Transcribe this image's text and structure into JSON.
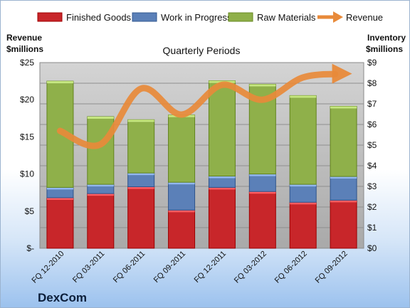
{
  "chart_data": {
    "type": "bar",
    "stacked": true,
    "subtitle": "Quarterly Periods",
    "brand": "DexCom",
    "categories": [
      "FQ 12-2010",
      "FQ 03-2011",
      "FQ 06-2011",
      "FQ 09-2011",
      "FQ 12-2011",
      "FQ 03-2012",
      "FQ 06-2012",
      "FQ 09-2012"
    ],
    "series": [
      {
        "name": "Finished Goods",
        "axis": "inventory",
        "color": "#c8262a",
        "values": [
          2.45,
          2.65,
          2.98,
          1.85,
          2.95,
          2.75,
          2.23,
          2.33
        ]
      },
      {
        "name": "Work in Progress",
        "axis": "inventory",
        "color": "#5b80b8",
        "values": [
          0.5,
          0.45,
          0.67,
          1.35,
          0.55,
          0.85,
          0.87,
          1.15
        ]
      },
      {
        "name": "Raw Materials",
        "axis": "inventory",
        "color": "#8fb04a",
        "values": [
          5.15,
          3.28,
          2.58,
          3.26,
          4.62,
          4.35,
          4.3,
          3.4
        ]
      }
    ],
    "line_series": {
      "name": "Revenue",
      "axis": "revenue",
      "color": "#e88a3a",
      "values": [
        15.8,
        14.0,
        21.5,
        18.0,
        22.0,
        20.0,
        23.0,
        23.5
      ]
    },
    "left_axis": {
      "label_line1": "Revenue",
      "label_line2": "$millions",
      "min": 0,
      "max": 25,
      "ticks": [
        "$-",
        "$5",
        "$10",
        "$15",
        "$20",
        "$25"
      ]
    },
    "right_axis": {
      "label_line1": "Inventory",
      "label_line2": "$millions",
      "min": 0,
      "max": 9,
      "ticks": [
        "$0",
        "$1",
        "$2",
        "$3",
        "$4",
        "$5",
        "$6",
        "$7",
        "$8",
        "$9"
      ]
    },
    "grid": true,
    "legend_position": "top"
  }
}
